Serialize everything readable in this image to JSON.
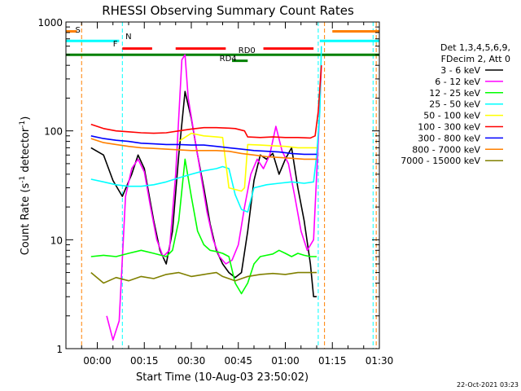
{
  "chart_data": {
    "type": "line",
    "title": "RHESSI Observing Summary Count Rates",
    "xlabel": "Start Time (10-Aug-03 23:50:02)",
    "ylabel": "Count Rate (s⁻¹ detector⁻¹)",
    "ylabel_main": "Count Rate (s",
    "ylabel_sup1": "-1",
    "ylabel_mid": " detector",
    "ylabel_sup2": "-1",
    "ylabel_end": ")",
    "y_scale": "log",
    "ylim": [
      1,
      1000
    ],
    "xlim_minutes": [
      -10,
      90
    ],
    "x_ticks": [
      {
        "t": 0,
        "label": "00:00"
      },
      {
        "t": 15,
        "label": "00:15"
      },
      {
        "t": 30,
        "label": "00:30"
      },
      {
        "t": 45,
        "label": "00:45"
      },
      {
        "t": 60,
        "label": "01:00"
      },
      {
        "t": 75,
        "label": "01:15"
      },
      {
        "t": 90,
        "label": "01:30"
      }
    ],
    "y_ticks": [
      {
        "v": 1,
        "label": "1"
      },
      {
        "v": 10,
        "label": "10"
      },
      {
        "v": 100,
        "label": "100"
      },
      {
        "v": 1000,
        "label": "1000"
      }
    ],
    "legend_header": [
      "Det 1,3,4,5,6,9,",
      "FDecim 2, Att 0"
    ],
    "timestamp": "22-Oct-2021 03:23",
    "series": [
      {
        "name": "3 - 6 keV",
        "color": "#000000",
        "points": [
          [
            -2,
            70
          ],
          [
            2,
            60
          ],
          [
            5,
            35
          ],
          [
            8,
            25
          ],
          [
            11,
            40
          ],
          [
            13,
            60
          ],
          [
            15,
            45
          ],
          [
            18,
            15
          ],
          [
            20,
            8
          ],
          [
            22,
            6
          ],
          [
            24,
            12
          ],
          [
            26,
            60
          ],
          [
            28,
            230
          ],
          [
            30,
            130
          ],
          [
            32,
            60
          ],
          [
            34,
            30
          ],
          [
            36,
            14
          ],
          [
            38,
            8
          ],
          [
            40,
            6
          ],
          [
            42,
            5
          ],
          [
            44,
            4.5
          ],
          [
            46,
            5
          ],
          [
            48,
            12
          ],
          [
            50,
            35
          ],
          [
            52,
            60
          ],
          [
            54,
            55
          ],
          [
            56,
            62
          ],
          [
            58,
            40
          ],
          [
            60,
            55
          ],
          [
            62,
            70
          ],
          [
            64,
            30
          ],
          [
            66,
            15
          ],
          [
            68,
            6
          ],
          [
            69,
            3
          ],
          [
            70,
            3
          ]
        ]
      },
      {
        "name": "6 - 12 keV",
        "color": "#ff00ff",
        "points": [
          [
            3,
            2
          ],
          [
            5,
            1.2
          ],
          [
            7,
            1.8
          ],
          [
            9,
            25
          ],
          [
            11,
            45
          ],
          [
            13,
            55
          ],
          [
            15,
            42
          ],
          [
            17,
            20
          ],
          [
            19,
            10
          ],
          [
            21,
            7
          ],
          [
            23,
            8
          ],
          [
            25,
            40
          ],
          [
            27,
            450
          ],
          [
            28,
            500
          ],
          [
            29,
            200
          ],
          [
            31,
            90
          ],
          [
            33,
            40
          ],
          [
            35,
            18
          ],
          [
            37,
            10
          ],
          [
            39,
            7
          ],
          [
            41,
            6
          ],
          [
            43,
            6.5
          ],
          [
            45,
            9
          ],
          [
            47,
            20
          ],
          [
            49,
            40
          ],
          [
            51,
            55
          ],
          [
            53,
            45
          ],
          [
            55,
            60
          ],
          [
            57,
            110
          ],
          [
            59,
            65
          ],
          [
            61,
            50
          ],
          [
            63,
            25
          ],
          [
            65,
            12
          ],
          [
            67,
            8
          ],
          [
            69,
            10
          ],
          [
            70,
            40
          ],
          [
            70.8,
            120
          ],
          [
            71.5,
            400
          ]
        ]
      },
      {
        "name": "12 - 25 keV",
        "color": "#00ff00",
        "points": [
          [
            -2,
            7
          ],
          [
            2,
            7.2
          ],
          [
            6,
            7
          ],
          [
            10,
            7.5
          ],
          [
            14,
            8
          ],
          [
            18,
            7.5
          ],
          [
            22,
            7
          ],
          [
            24,
            8
          ],
          [
            26,
            15
          ],
          [
            28,
            55
          ],
          [
            30,
            25
          ],
          [
            32,
            12
          ],
          [
            34,
            9
          ],
          [
            36,
            8
          ],
          [
            38,
            7.8
          ],
          [
            40,
            7.5
          ],
          [
            42,
            7
          ],
          [
            44,
            4
          ],
          [
            46,
            3.2
          ],
          [
            48,
            4
          ],
          [
            50,
            6
          ],
          [
            52,
            7
          ],
          [
            54,
            7.2
          ],
          [
            56,
            7.4
          ],
          [
            58,
            8
          ],
          [
            60,
            7.5
          ],
          [
            62,
            7
          ],
          [
            64,
            7.5
          ],
          [
            66,
            7.2
          ],
          [
            68,
            7
          ],
          [
            70,
            7
          ]
        ]
      },
      {
        "name": "25 - 50 keV",
        "color": "#00ffff",
        "points": [
          [
            -2,
            36
          ],
          [
            2,
            34
          ],
          [
            6,
            32
          ],
          [
            10,
            31
          ],
          [
            14,
            31
          ],
          [
            18,
            32
          ],
          [
            22,
            34
          ],
          [
            26,
            37
          ],
          [
            30,
            40
          ],
          [
            34,
            43
          ],
          [
            38,
            45
          ],
          [
            40,
            47
          ],
          [
            42,
            45
          ],
          [
            44,
            26
          ],
          [
            46,
            19
          ],
          [
            48,
            18
          ],
          [
            50,
            30
          ],
          [
            54,
            32
          ],
          [
            58,
            33
          ],
          [
            62,
            34
          ],
          [
            66,
            33
          ],
          [
            69,
            34
          ],
          [
            70,
            60
          ],
          [
            71,
            150
          ],
          [
            71.5,
            600
          ]
        ]
      },
      {
        "name": "50 - 100 keV",
        "color": "#ffff00",
        "points": [
          [
            26,
            80
          ],
          [
            30,
            95
          ],
          [
            34,
            90
          ],
          [
            38,
            88
          ],
          [
            40,
            87
          ],
          [
            42,
            30
          ],
          [
            46,
            28
          ],
          [
            47,
            30
          ],
          [
            48,
            75
          ],
          [
            52,
            74
          ],
          [
            56,
            73
          ],
          [
            60,
            72
          ],
          [
            64,
            70
          ],
          [
            68,
            70
          ],
          [
            70,
            70
          ]
        ]
      },
      {
        "name": "100 - 300 keV",
        "color": "#ff0000",
        "points": [
          [
            -2,
            115
          ],
          [
            2,
            105
          ],
          [
            6,
            100
          ],
          [
            10,
            98
          ],
          [
            14,
            96
          ],
          [
            18,
            95
          ],
          [
            22,
            96
          ],
          [
            26,
            100
          ],
          [
            30,
            104
          ],
          [
            34,
            107
          ],
          [
            38,
            107
          ],
          [
            42,
            106
          ],
          [
            44,
            105
          ],
          [
            47,
            100
          ],
          [
            48,
            88
          ],
          [
            52,
            87
          ],
          [
            56,
            88
          ],
          [
            60,
            87
          ],
          [
            64,
            87
          ],
          [
            68,
            86
          ],
          [
            69.5,
            90
          ],
          [
            70.5,
            150
          ],
          [
            71.5,
            400
          ]
        ]
      },
      {
        "name": "300 - 800 keV",
        "color": "#0000ff",
        "points": [
          [
            -2,
            90
          ],
          [
            2,
            85
          ],
          [
            6,
            82
          ],
          [
            10,
            80
          ],
          [
            14,
            77
          ],
          [
            18,
            76
          ],
          [
            22,
            75
          ],
          [
            26,
            75
          ],
          [
            30,
            74
          ],
          [
            34,
            74
          ],
          [
            38,
            72
          ],
          [
            42,
            70
          ],
          [
            46,
            68
          ],
          [
            50,
            66
          ],
          [
            54,
            65
          ],
          [
            58,
            64
          ],
          [
            62,
            62
          ],
          [
            66,
            61
          ],
          [
            70,
            61
          ]
        ]
      },
      {
        "name": "800 - 7000 keV",
        "color": "#ff8000",
        "points": [
          [
            -2,
            85
          ],
          [
            2,
            78
          ],
          [
            6,
            75
          ],
          [
            10,
            72
          ],
          [
            14,
            70
          ],
          [
            18,
            69
          ],
          [
            22,
            68
          ],
          [
            26,
            67
          ],
          [
            30,
            66
          ],
          [
            34,
            66
          ],
          [
            38,
            66
          ],
          [
            42,
            65
          ],
          [
            46,
            62
          ],
          [
            50,
            60
          ],
          [
            54,
            58
          ],
          [
            58,
            57
          ],
          [
            62,
            56
          ],
          [
            66,
            55
          ],
          [
            70,
            55
          ]
        ]
      },
      {
        "name": "7000 - 15000 keV",
        "color": "#808000",
        "points": [
          [
            -2,
            5
          ],
          [
            2,
            4
          ],
          [
            6,
            4.5
          ],
          [
            10,
            4.2
          ],
          [
            14,
            4.6
          ],
          [
            18,
            4.4
          ],
          [
            22,
            4.8
          ],
          [
            26,
            5
          ],
          [
            30,
            4.6
          ],
          [
            34,
            4.8
          ],
          [
            38,
            5
          ],
          [
            40,
            4.6
          ],
          [
            44,
            4.2
          ],
          [
            48,
            4.6
          ],
          [
            52,
            4.8
          ],
          [
            56,
            4.9
          ],
          [
            60,
            4.8
          ],
          [
            64,
            5
          ],
          [
            68,
            5
          ],
          [
            70,
            5
          ]
        ]
      }
    ],
    "flag_bars": [
      {
        "label": "S",
        "color": "#ff8000",
        "level": 820,
        "segments": [
          [
            -10,
            -6.5
          ],
          [
            75,
            90
          ]
        ]
      },
      {
        "label": "N",
        "color": "#00ffff",
        "level": 670,
        "segments": [
          [
            -10,
            7
          ],
          [
            71,
            90
          ]
        ]
      },
      {
        "label": "F",
        "color": "#ff0000",
        "level": 570,
        "segments": [
          [
            8,
            17.5
          ],
          [
            25,
            41
          ],
          [
            53,
            69
          ]
        ]
      },
      {
        "label": "RD0",
        "color": "#008000",
        "level": 500,
        "segments": [
          [
            -10,
            90
          ]
        ]
      },
      {
        "label": "RD4",
        "color": "#008000",
        "level": 440,
        "segments": [
          [
            43,
            48
          ]
        ]
      }
    ],
    "vertical_lines": [
      {
        "t": -5,
        "color": "#ff8000"
      },
      {
        "t": 8,
        "color": "#00ffff"
      },
      {
        "t": 70.5,
        "color": "#00ffff"
      },
      {
        "t": 72.5,
        "color": "#ff8000"
      },
      {
        "t": 88,
        "color": "#00ffff"
      },
      {
        "t": 89,
        "color": "#ff8000"
      }
    ]
  }
}
